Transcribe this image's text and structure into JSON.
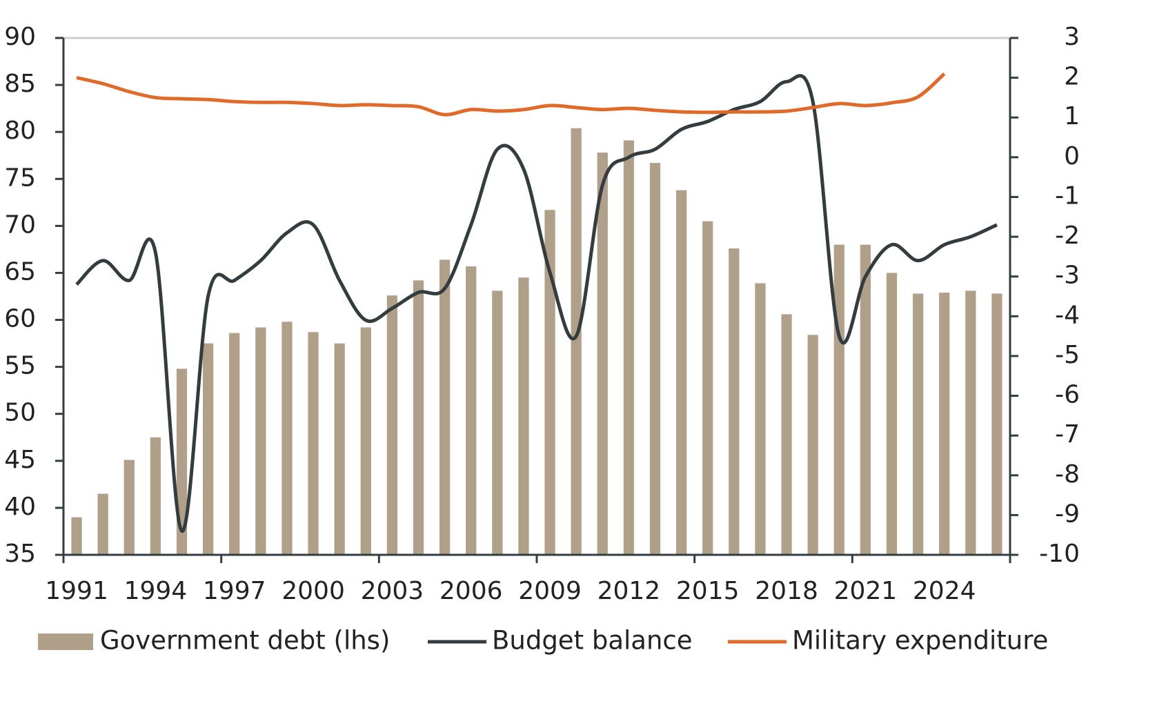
{
  "chart_data": {
    "type": "bar",
    "categories": [
      "1991",
      null,
      null,
      "1994",
      null,
      null,
      "1997",
      null,
      null,
      "2000",
      null,
      null,
      "2003",
      null,
      null,
      "2006",
      null,
      null,
      "2009",
      null,
      null,
      "2012",
      null,
      null,
      "2015",
      null,
      null,
      "2018",
      null,
      null,
      "2021",
      null,
      null,
      "2024",
      null,
      null
    ],
    "series": [
      {
        "name": "Government debt (lhs)",
        "type": "bar",
        "axis": "y",
        "color": "#b09f89",
        "values": [
          39.0,
          41.5,
          45.1,
          47.5,
          54.8,
          57.5,
          58.6,
          59.2,
          59.8,
          58.7,
          57.5,
          59.2,
          62.6,
          64.2,
          66.4,
          65.7,
          63.1,
          64.5,
          71.7,
          80.4,
          77.8,
          79.1,
          76.7,
          73.8,
          70.5,
          67.6,
          63.9,
          60.6,
          58.4,
          68.0,
          68.0,
          65.0,
          62.8,
          62.9,
          63.1,
          62.8
        ]
      },
      {
        "name": "Budget balance",
        "type": "line",
        "axis": "y2",
        "color": "#333d40",
        "values": [
          -3.2,
          -2.6,
          -3.1,
          -2.4,
          -9.4,
          -3.5,
          -3.1,
          -2.6,
          -1.9,
          -1.7,
          -3.1,
          -4.1,
          -3.8,
          -3.4,
          -3.3,
          -1.7,
          0.2,
          -0.3,
          -2.9,
          -4.5,
          -0.7,
          0.0,
          0.2,
          0.7,
          0.9,
          1.2,
          1.4,
          1.9,
          1.4,
          -4.5,
          -3.0,
          -2.2,
          -2.6,
          -2.2,
          -2.0,
          -1.7
        ]
      },
      {
        "name": "Military expenditure",
        "type": "line",
        "axis": "y2",
        "color": "#e06a2a",
        "values": [
          2.0,
          1.85,
          1.65,
          1.5,
          1.47,
          1.45,
          1.4,
          1.38,
          1.38,
          1.35,
          1.3,
          1.32,
          1.3,
          1.27,
          1.07,
          1.2,
          1.16,
          1.2,
          1.3,
          1.25,
          1.2,
          1.23,
          1.18,
          1.14,
          1.13,
          1.14,
          1.14,
          1.16,
          1.25,
          1.35,
          1.3,
          1.37,
          1.52,
          2.1,
          null,
          null
        ]
      }
    ],
    "ylim": [
      35,
      90
    ],
    "yticks": [
      35,
      40,
      45,
      50,
      55,
      60,
      65,
      70,
      75,
      80,
      85,
      90
    ],
    "y2lim": [
      -10,
      3
    ],
    "y2ticks": [
      -10,
      -9,
      -8,
      -7,
      -6,
      -5,
      -4,
      -3,
      -2,
      -1,
      0,
      1,
      2,
      3
    ],
    "legend": "bottom"
  }
}
